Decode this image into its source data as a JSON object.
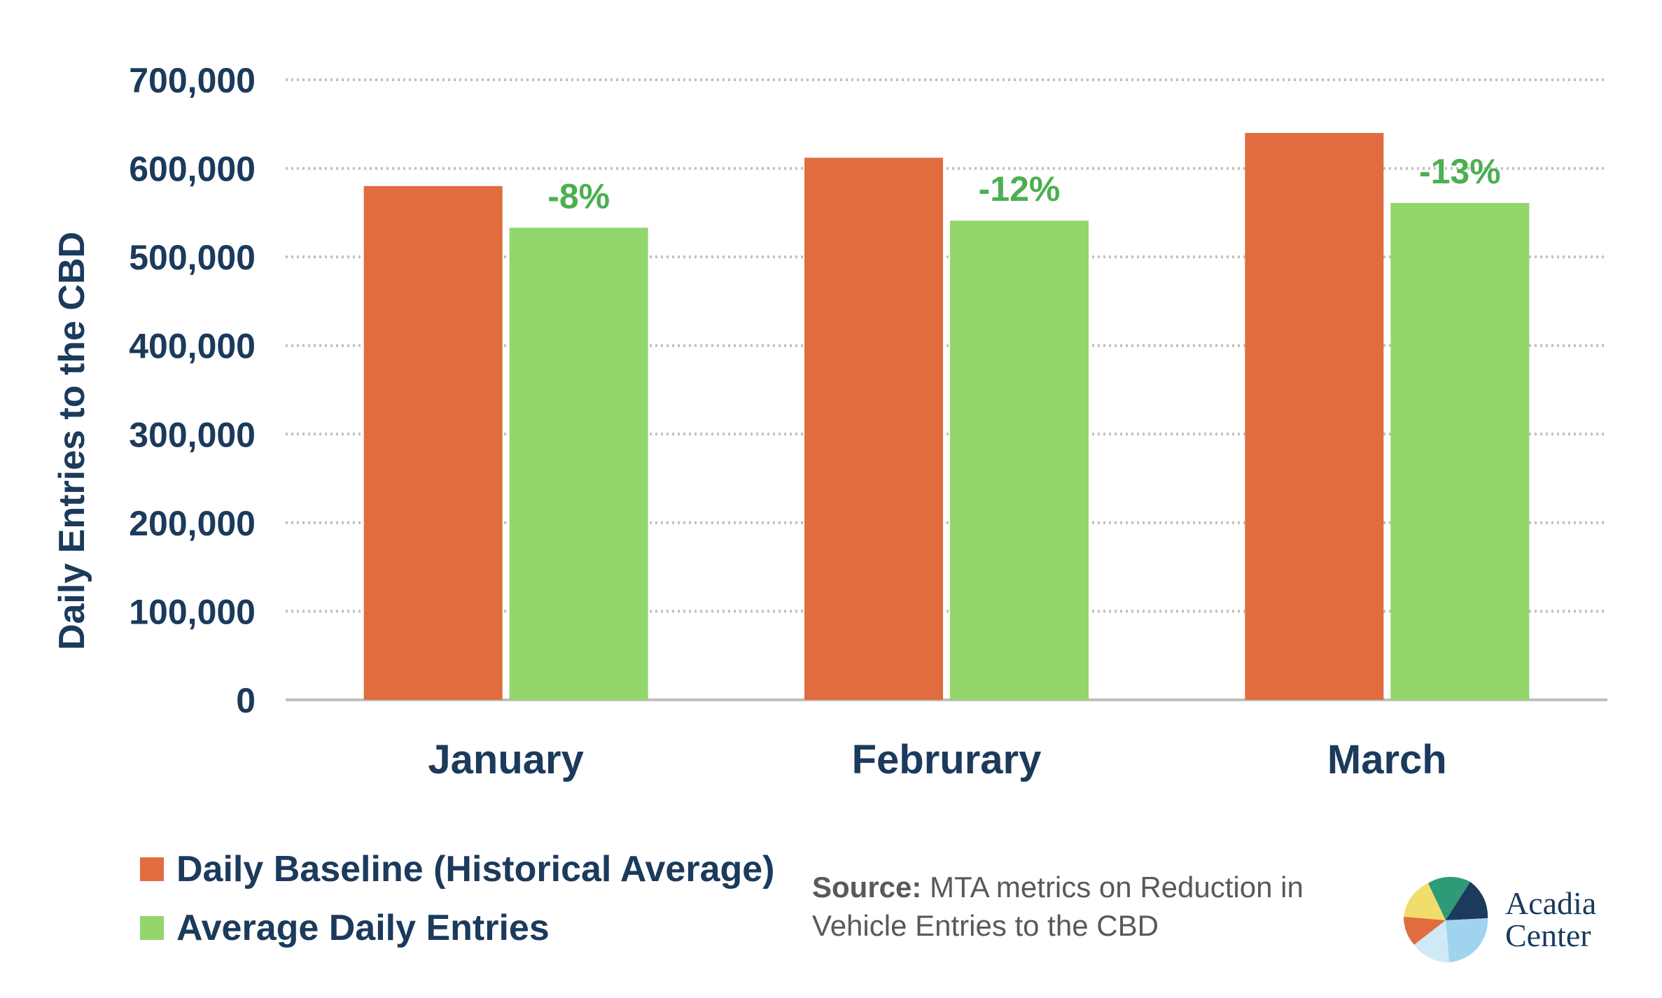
{
  "chart_data": {
    "type": "bar",
    "categories": [
      "January",
      "Februrary",
      "March"
    ],
    "series": [
      {
        "name": "Daily Baseline (Historical Average)",
        "color": "#e06c40",
        "values": [
          580000,
          612000,
          640000
        ]
      },
      {
        "name": "Average Daily Entries",
        "color": "#92d66c",
        "values": [
          533000,
          541000,
          561000
        ]
      }
    ],
    "data_labels": [
      "-8%",
      "-12%",
      "-13%"
    ],
    "ylabel": "Daily Entries to the CBD",
    "ylim": [
      0,
      700000
    ],
    "yticks": [
      "0",
      "100,000",
      "200,000",
      "300,000",
      "400,000",
      "500,000",
      "600,000",
      "700,000"
    ],
    "grid": "horizontal dotted",
    "legend_position": "bottom-left"
  },
  "source": {
    "label": "Source:",
    "text": "MTA metrics on Reduction in Vehicle Entries to the CBD"
  },
  "logo": {
    "line1": "Acadia",
    "line2": "Center"
  },
  "colors": {
    "text": "#1b3a5c",
    "label_green": "#4caf50",
    "grid": "#bfbfbf"
  }
}
